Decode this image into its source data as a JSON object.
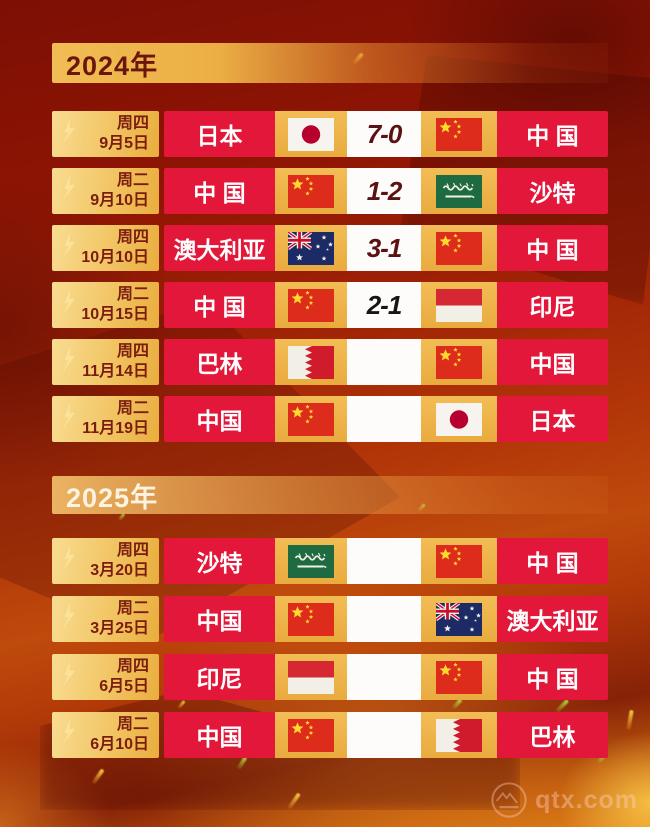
{
  "sections": [
    {
      "year_label": "2024年",
      "matches": [
        {
          "weekday": "周四",
          "date": "9月5日",
          "home_team": "日本",
          "home_flag": "jp",
          "score": "7-0",
          "score_color": "#5a1212",
          "away_team": "中 国",
          "away_flag": "cn"
        },
        {
          "weekday": "周二",
          "date": "9月10日",
          "home_team": "中 国",
          "home_flag": "cn",
          "score": "1-2",
          "score_color": "#5a1212",
          "away_team": "沙特",
          "away_flag": "sa"
        },
        {
          "weekday": "周四",
          "date": "10月10日",
          "home_team": "澳大利亚",
          "home_flag": "au",
          "score": "3-1",
          "score_color": "#5a1212",
          "away_team": "中 国",
          "away_flag": "cn"
        },
        {
          "weekday": "周二",
          "date": "10月15日",
          "home_team": "中 国",
          "home_flag": "cn",
          "score": "2-1",
          "score_color": "#161616",
          "away_team": "印尼",
          "away_flag": "id"
        },
        {
          "weekday": "周四",
          "date": "11月14日",
          "home_team": "巴林",
          "home_flag": "bh",
          "score": "",
          "score_color": "",
          "away_team": "中国",
          "away_flag": "cn"
        },
        {
          "weekday": "周二",
          "date": "11月19日",
          "home_team": "中国",
          "home_flag": "cn",
          "score": "",
          "score_color": "",
          "away_team": "日本",
          "away_flag": "jp"
        }
      ]
    },
    {
      "year_label": "2025年",
      "matches": [
        {
          "weekday": "周四",
          "date": "3月20日",
          "home_team": "沙特",
          "home_flag": "sa",
          "score": "",
          "score_color": "",
          "away_team": "中 国",
          "away_flag": "cn"
        },
        {
          "weekday": "周二",
          "date": "3月25日",
          "home_team": "中国",
          "home_flag": "cn",
          "score": "",
          "score_color": "",
          "away_team": "澳大利亚",
          "away_flag": "au"
        },
        {
          "weekday": "周四",
          "date": "6月5日",
          "home_team": "印尼",
          "home_flag": "id",
          "score": "",
          "score_color": "",
          "away_team": "中 国",
          "away_flag": "cn"
        },
        {
          "weekday": "周二",
          "date": "6月10日",
          "home_team": "中国",
          "home_flag": "cn",
          "score": "",
          "score_color": "",
          "away_team": "巴林",
          "away_flag": "bh"
        }
      ]
    }
  ],
  "flag_names": {
    "jp": "japan",
    "cn": "china",
    "sa": "saudi-arabia",
    "au": "australia",
    "id": "indonesia",
    "bh": "bahrain"
  },
  "watermark": {
    "text": "qtx.com"
  },
  "colors": {
    "row_red": "#e21739",
    "gold": "#e9ab3e",
    "date_text": "#7c1c0f",
    "year_2024_text": "#6b150b",
    "year_2025_text": "#fdf3e0",
    "score_maroon": "#5a1212",
    "score_black": "#161616",
    "background_base": "#9a1a05"
  }
}
